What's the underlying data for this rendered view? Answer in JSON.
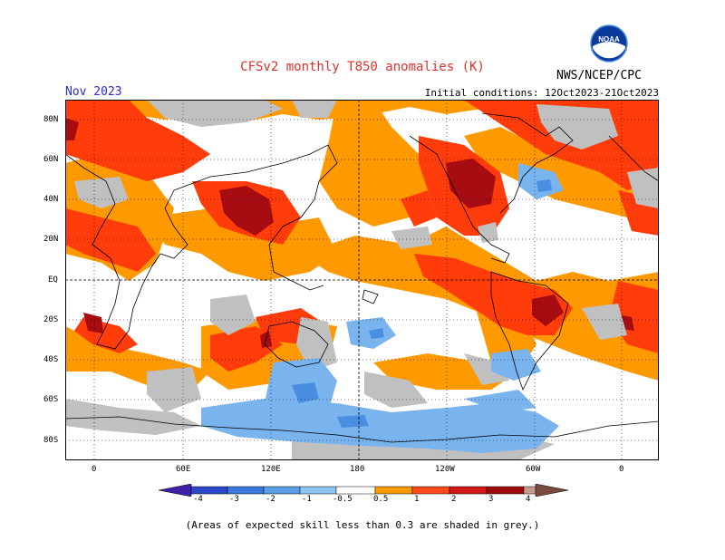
{
  "header": {
    "title": "CFSv2 monthly T850 anomalies (K)",
    "org": "NWS/NCEP/CPC",
    "month": "Nov 2023",
    "initial_conditions": "Initial conditions: 12Oct2023-21Oct2023",
    "logo_text": "NOAA"
  },
  "axes": {
    "lat_labels": [
      "80N",
      "60N",
      "40N",
      "20N",
      "EQ",
      "20S",
      "40S",
      "60S",
      "80S"
    ],
    "lon_labels": [
      "0",
      "60E",
      "120E",
      "180",
      "120W",
      "60W",
      "0"
    ]
  },
  "colorbar": {
    "labels": [
      "-4",
      "-3",
      "-2",
      "-1",
      "-0.5",
      "0.5",
      "1",
      "2",
      "3",
      "4"
    ],
    "colors": [
      "#3d1fa8",
      "#2a48c8",
      "#3a78e0",
      "#5b9ee8",
      "#8ec4f2",
      "#ffffff",
      "#ff9900",
      "#ff4a1a",
      "#d01818",
      "#9e0a0a",
      "#c89a8c",
      "#7a4a3a"
    ]
  },
  "footer": {
    "note": "(Areas of expected skill less than 0.3 are shaded in grey.)"
  },
  "legend_colors": {
    "grey": "#c0c0c0",
    "orange": "#ff9900",
    "red": "#ff3c0a",
    "dark_red": "#a60c12",
    "light_blue": "#7ab4ee",
    "blue": "#4a8ee2"
  }
}
